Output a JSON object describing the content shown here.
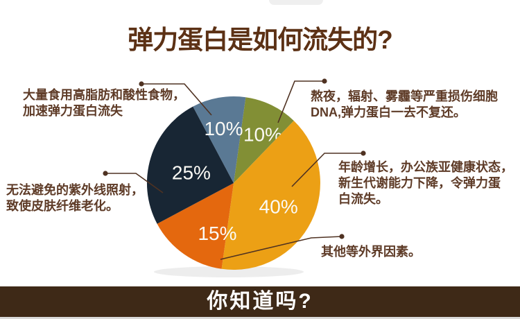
{
  "page": {
    "title": "弹力蛋白是如何流失的?",
    "footer": "你知道吗?",
    "colors": {
      "title_text": "#5c3115",
      "annotation_text": "#5e3b27",
      "connector": "#4f3222",
      "banner_bg": "#3e2917",
      "banner_text": "#ffffff",
      "slice_label_text": "#fbfaf5"
    }
  },
  "chart_data": {
    "type": "pie",
    "title": "弹力蛋白是如何流失的?",
    "legend": "none",
    "labels_on_slices": true,
    "slices": [
      {
        "name": "熬夜辐射雾霾损伤",
        "value": 10,
        "display": "10%",
        "color": "#828f35"
      },
      {
        "name": "年龄增长代谢下降",
        "value": 40,
        "display": "40%",
        "color": "#eca015"
      },
      {
        "name": "其他外界因素",
        "value": 15,
        "display": "15%",
        "color": "#e4680e"
      },
      {
        "name": "紫外线照射",
        "value": 25,
        "display": "25%",
        "color": "#182634"
      },
      {
        "name": "高脂肪酸性食物",
        "value": 10,
        "display": "10%",
        "color": "#5a7994"
      }
    ]
  },
  "annotations": [
    {
      "id": "top-left",
      "text": "大量食用高脂肪和酸性食物，\n加速弹力蛋白流失"
    },
    {
      "id": "top-right",
      "text": "熬夜，辐射、雾霾等严重损伤细胞\nDNA,弹力蛋白一去不复还。"
    },
    {
      "id": "mid-left",
      "text": "无法避免的紫外线照射，\n致使皮肤纤维老化。"
    },
    {
      "id": "mid-right",
      "text": "年龄增长，办公族亚健康状态，\n新生代谢能力下降，令弹力蛋\n白流失。"
    },
    {
      "id": "bottom-right",
      "text": "其他等外界因素。"
    }
  ]
}
